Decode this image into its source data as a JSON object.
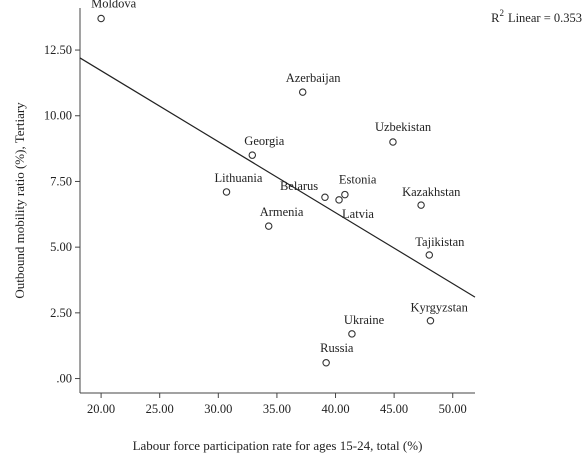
{
  "chart_data": {
    "type": "scatter",
    "xlabel": "Labour force participation rate for ages 15-24, total (%)",
    "ylabel": "Outbound mobility ratio (%), Tertiary",
    "x_ticks": [
      "20.00",
      "25.00",
      "30.00",
      "35.00",
      "40.00",
      "45.00",
      "50.00"
    ],
    "y_ticks": [
      ".00",
      "2.50",
      "5.00",
      "7.50",
      "10.00",
      "12.50"
    ],
    "xlim": [
      18.2,
      51.9
    ],
    "ylim": [
      -0.55,
      14.1
    ],
    "grid": false,
    "points": [
      {
        "label": "Moldova",
        "x": 20.0,
        "y": 13.7
      },
      {
        "label": "Azerbaijan",
        "x": 37.2,
        "y": 10.9
      },
      {
        "label": "Uzbekistan",
        "x": 44.9,
        "y": 9.0
      },
      {
        "label": "Georgia",
        "x": 32.9,
        "y": 8.5
      },
      {
        "label": "Lithuania",
        "x": 30.7,
        "y": 7.1
      },
      {
        "label": "Belarus",
        "x": 39.1,
        "y": 6.9
      },
      {
        "label": "Estonia",
        "x": 40.8,
        "y": 7.0
      },
      {
        "label": "Latvia",
        "x": 40.3,
        "y": 6.8
      },
      {
        "label": "Kazakhstan",
        "x": 47.3,
        "y": 6.6
      },
      {
        "label": "Armenia",
        "x": 34.3,
        "y": 5.8
      },
      {
        "label": "Tajikistan",
        "x": 48.0,
        "y": 4.7
      },
      {
        "label": "Kyrgyzstan",
        "x": 48.1,
        "y": 2.2
      },
      {
        "label": "Ukraine",
        "x": 41.4,
        "y": 1.7
      },
      {
        "label": "Russia",
        "x": 39.2,
        "y": 0.6
      }
    ],
    "fit_line": {
      "x1": 18.2,
      "y1": 12.2,
      "x2": 51.9,
      "y2": 3.1
    },
    "r2_text": "Linear = 0.353"
  }
}
